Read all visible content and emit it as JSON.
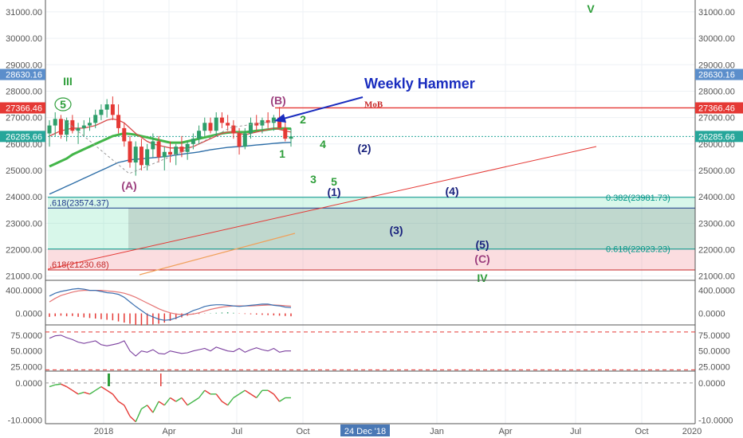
{
  "chart_data": [
    {
      "type": "candlestick",
      "title": "",
      "annotation_title": "Weekly Hammer",
      "x_ticks": [
        "2018",
        "Apr",
        "Jul",
        "Oct",
        "24 Dec '18",
        "Jan",
        "Apr",
        "Jul",
        "Oct",
        "2020"
      ],
      "y_ticks": [
        "31000.00",
        "30000.00",
        "29000.00",
        "28000.00",
        "27000.00",
        "26000.00",
        "25000.00",
        "24000.00",
        "23000.00",
        "22000.00",
        "21000.00"
      ],
      "ylim": [
        20900,
        31450
      ],
      "price_labels": [
        {
          "text": "28630.16",
          "value": 28630.16,
          "color": "#5b8ecb"
        },
        {
          "text": "27366.46",
          "value": 27366.46,
          "color": "#e53935"
        },
        {
          "text": "26285.66",
          "value": 26285.66,
          "color": "#26a69a"
        }
      ],
      "candles": [
        {
          "o": 26400,
          "h": 26900,
          "l": 25900,
          "c": 26700
        },
        {
          "o": 26700,
          "h": 27200,
          "l": 26300,
          "c": 26950
        },
        {
          "o": 26950,
          "h": 27100,
          "l": 26200,
          "c": 26350
        },
        {
          "o": 26350,
          "h": 27000,
          "l": 26100,
          "c": 26900
        },
        {
          "o": 26900,
          "h": 27100,
          "l": 26400,
          "c": 26500
        },
        {
          "o": 26500,
          "h": 26800,
          "l": 26000,
          "c": 26600
        },
        {
          "o": 26600,
          "h": 26900,
          "l": 26300,
          "c": 26700
        },
        {
          "o": 26700,
          "h": 27000,
          "l": 26500,
          "c": 26800
        },
        {
          "o": 26800,
          "h": 27300,
          "l": 26600,
          "c": 27100
        },
        {
          "o": 27100,
          "h": 27500,
          "l": 26900,
          "c": 27300
        },
        {
          "o": 27300,
          "h": 27700,
          "l": 27000,
          "c": 27500
        },
        {
          "o": 27500,
          "h": 27800,
          "l": 26900,
          "c": 27100
        },
        {
          "o": 27100,
          "h": 27500,
          "l": 26400,
          "c": 26600
        },
        {
          "o": 26600,
          "h": 26800,
          "l": 25900,
          "c": 26100
        },
        {
          "o": 26100,
          "h": 26300,
          "l": 25100,
          "c": 25300
        },
        {
          "o": 25300,
          "h": 26100,
          "l": 24800,
          "c": 25900
        },
        {
          "o": 25900,
          "h": 26200,
          "l": 25000,
          "c": 25200
        },
        {
          "o": 25200,
          "h": 26000,
          "l": 25000,
          "c": 25800
        },
        {
          "o": 25800,
          "h": 26400,
          "l": 25500,
          "c": 26100
        },
        {
          "o": 26100,
          "h": 26300,
          "l": 25300,
          "c": 25500
        },
        {
          "o": 25500,
          "h": 25900,
          "l": 25000,
          "c": 25700
        },
        {
          "o": 25700,
          "h": 26100,
          "l": 25300,
          "c": 25600
        },
        {
          "o": 25600,
          "h": 26000,
          "l": 25200,
          "c": 25900
        },
        {
          "o": 25900,
          "h": 26300,
          "l": 25500,
          "c": 25700
        },
        {
          "o": 25700,
          "h": 26100,
          "l": 25400,
          "c": 26000
        },
        {
          "o": 26000,
          "h": 26400,
          "l": 25800,
          "c": 26200
        },
        {
          "o": 26200,
          "h": 26700,
          "l": 26000,
          "c": 26500
        },
        {
          "o": 26500,
          "h": 27000,
          "l": 26300,
          "c": 26800
        },
        {
          "o": 26800,
          "h": 27000,
          "l": 26400,
          "c": 26500
        },
        {
          "o": 26500,
          "h": 27200,
          "l": 26300,
          "c": 27000
        },
        {
          "o": 27000,
          "h": 27200,
          "l": 26600,
          "c": 26800
        },
        {
          "o": 26800,
          "h": 27100,
          "l": 26500,
          "c": 26700
        },
        {
          "o": 26700,
          "h": 26900,
          "l": 26200,
          "c": 26400
        },
        {
          "o": 26400,
          "h": 26600,
          "l": 25600,
          "c": 25900
        },
        {
          "o": 25900,
          "h": 26600,
          "l": 25800,
          "c": 26400
        },
        {
          "o": 26400,
          "h": 27000,
          "l": 26200,
          "c": 26800
        },
        {
          "o": 26800,
          "h": 27100,
          "l": 26500,
          "c": 26700
        },
        {
          "o": 26700,
          "h": 27000,
          "l": 26400,
          "c": 26900
        },
        {
          "o": 26900,
          "h": 27200,
          "l": 26600,
          "c": 26800
        },
        {
          "o": 26800,
          "h": 27100,
          "l": 26500,
          "c": 27000
        },
        {
          "o": 27000,
          "h": 27400,
          "l": 26700,
          "c": 26600
        },
        {
          "o": 26600,
          "h": 26900,
          "l": 26100,
          "c": 26200
        },
        {
          "o": 26200,
          "h": 26600,
          "l": 25900,
          "c": 26285
        }
      ],
      "ma_blue": [
        24100,
        24200,
        24300,
        24400,
        24500,
        24600,
        24700,
        24800,
        24900,
        25000,
        25100,
        25200,
        25300,
        25350,
        25400,
        25420,
        25440,
        25460,
        25480,
        25500,
        25520,
        25550,
        25580,
        25610,
        25640,
        25670,
        25700,
        25740,
        25780,
        25810,
        25840,
        25870,
        25890,
        25900,
        25920,
        25940,
        25960,
        25980,
        26000,
        26020,
        26040,
        26050,
        26060
      ],
      "ma_red": [
        26300,
        26400,
        26500,
        26550,
        26600,
        26600,
        26600,
        26650,
        26700,
        26800,
        26900,
        26950,
        26900,
        26800,
        26600,
        26400,
        26250,
        26100,
        26000,
        25950,
        25900,
        25850,
        25850,
        25850,
        25850,
        25900,
        26000,
        26100,
        26200,
        26300,
        26400,
        26450,
        26450,
        26400,
        26350,
        26400,
        26450,
        26500,
        26550,
        26600,
        26550,
        26500,
        26450
      ],
      "ma_green": [
        25150,
        25250,
        25350,
        25450,
        25600,
        25700,
        25800,
        25900,
        26000,
        26100,
        26200,
        26300,
        26350,
        26400,
        26380,
        26350,
        26300,
        26250,
        26200,
        26150,
        26100,
        26050,
        26050,
        26050,
        26100,
        26150,
        26200,
        26250,
        26300,
        26350,
        26400,
        26430,
        26450,
        26450,
        26450,
        26470,
        26500,
        26520,
        26550,
        26580,
        26590,
        26590,
        26580
      ],
      "levels": [
        {
          "label": "0.382(23981.73)",
          "value": 23981.73,
          "color": "#009688"
        },
        {
          "label": ".618(23574.37)",
          "value": 23574.37,
          "color": "#1e3a8a"
        },
        {
          "label": "0.618(22023.23)",
          "value": 22023.23,
          "color": "#009688"
        },
        {
          "label": ".618(21230.68)",
          "value": 21230.68,
          "color": "#c62828"
        }
      ],
      "mob_label": "MoB",
      "mob_value": 27366.46,
      "wave_labels": [
        {
          "text": "III",
          "color": "#2e9e3a"
        },
        {
          "text": "5",
          "color": "#2e9e3a"
        },
        {
          "text": "(A)",
          "color": "#9c3f7e"
        },
        {
          "text": "(B)",
          "color": "#9c3f7e"
        },
        {
          "text": "2",
          "color": "#2e9e3a"
        },
        {
          "text": "1",
          "color": "#2e9e3a"
        },
        {
          "text": "4",
          "color": "#2e9e3a"
        },
        {
          "text": "3",
          "color": "#2e9e3a"
        },
        {
          "text": "5",
          "color": "#2e9e3a"
        },
        {
          "text": "(1)",
          "color": "#1a237e"
        },
        {
          "text": "(2)",
          "color": "#1a237e"
        },
        {
          "text": "(3)",
          "color": "#1a237e"
        },
        {
          "text": "(4)",
          "color": "#1a237e"
        },
        {
          "text": "(5)",
          "color": "#1a237e"
        },
        {
          "text": "(C)",
          "color": "#9c3f7e"
        },
        {
          "text": "IV",
          "color": "#2e9e3a"
        },
        {
          "text": "V",
          "color": "#2e9e3a"
        }
      ]
    },
    {
      "type": "line",
      "y_ticks": [
        "400.0000",
        "0.0000"
      ],
      "ylim": [
        -200,
        560
      ],
      "macd": [
        300,
        350,
        380,
        400,
        420,
        430,
        420,
        400,
        400,
        380,
        360,
        350,
        330,
        280,
        200,
        120,
        50,
        -20,
        -60,
        -100,
        -120,
        -110,
        -80,
        -40,
        0,
        50,
        80,
        120,
        140,
        150,
        150,
        140,
        130,
        120,
        130,
        140,
        150,
        160,
        160,
        140,
        130,
        110,
        100
      ],
      "signal": [
        200,
        260,
        310,
        340,
        370,
        390,
        400,
        400,
        400,
        400,
        390,
        380,
        370,
        350,
        320,
        280,
        230,
        180,
        130,
        80,
        40,
        10,
        -10,
        -20,
        -20,
        -10,
        10,
        40,
        70,
        90,
        110,
        120,
        130,
        130,
        130,
        130,
        135,
        140,
        145,
        145,
        140,
        135,
        125
      ],
      "histogram": [
        -60,
        -50,
        -40,
        -50,
        -45,
        -60,
        -70,
        -80,
        -90,
        -100,
        -110,
        -120,
        -140,
        -160,
        -180,
        -200,
        -210,
        -200,
        -190,
        -180,
        -160,
        -130,
        -100,
        -70,
        -40,
        -20,
        -10,
        -5,
        5,
        10,
        15,
        20,
        10,
        -5,
        -10,
        -15,
        -20,
        -25,
        -30,
        -35,
        -40,
        -45,
        -50
      ]
    },
    {
      "type": "line",
      "y_ticks": [
        "75.0000",
        "50.0000",
        "25.0000"
      ],
      "ylim": [
        18,
        90
      ],
      "rsi": [
        70,
        74,
        75,
        71,
        68,
        64,
        62,
        64,
        66,
        60,
        58,
        60,
        62,
        66,
        50,
        42,
        50,
        48,
        52,
        46,
        45,
        50,
        48,
        46,
        47,
        50,
        52,
        54,
        50,
        56,
        53,
        50,
        49,
        54,
        48,
        52,
        55,
        52,
        50,
        54,
        48,
        50,
        50
      ],
      "bands": [
        80,
        20
      ]
    },
    {
      "type": "line",
      "y_ticks": [
        "0.0000",
        "-10.0000"
      ],
      "ylim": [
        -11,
        3
      ],
      "momentum": [
        -1,
        -0.5,
        -0.3,
        -1,
        -2,
        -3,
        -2.5,
        -3,
        -2,
        -1,
        -2,
        -3,
        -5,
        -6,
        -9,
        -10.5,
        -7,
        -6,
        -8,
        -5,
        -6,
        -4,
        -5,
        -4,
        -6,
        -5,
        -4,
        -2,
        -3,
        -3,
        -5,
        -6,
        -4,
        -3,
        -2,
        -3,
        -4,
        -2,
        -2,
        -3,
        -5,
        -4,
        -4
      ],
      "spikes": 2
    }
  ]
}
